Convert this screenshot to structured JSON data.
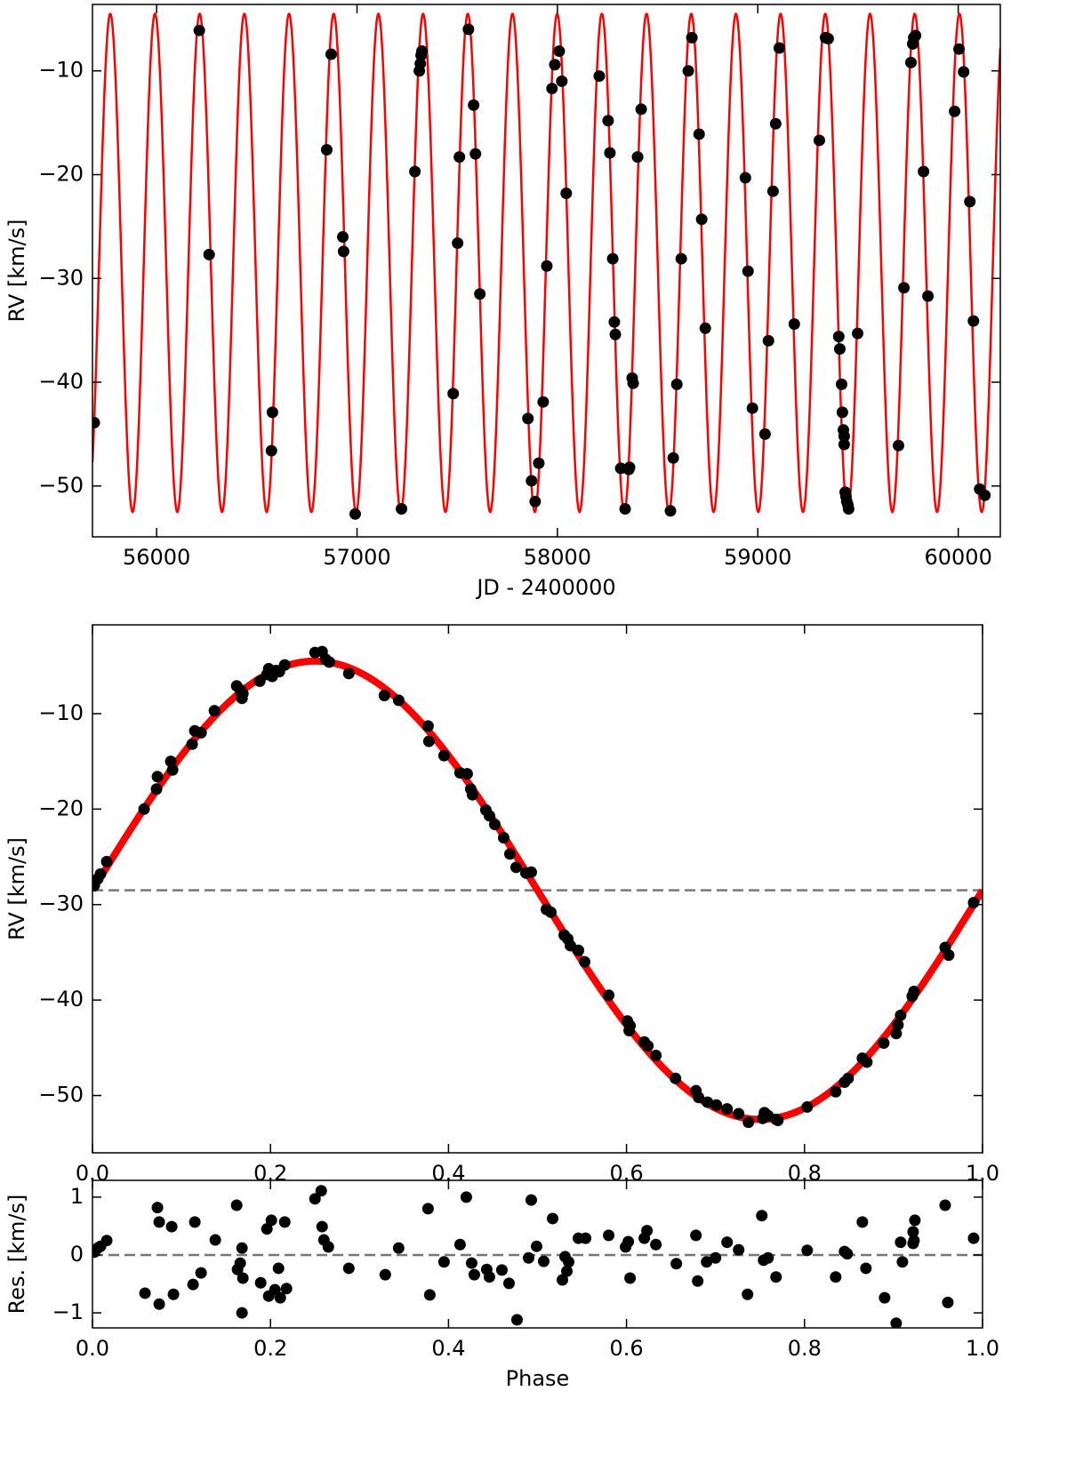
{
  "chart_data": [
    {
      "type": "scatter",
      "xlabel": "JD - 2400000",
      "ylabel": "RV [km/s]",
      "xlim": [
        55680,
        60210
      ],
      "ylim": [
        -54.9,
        -3.6
      ],
      "xticks": [
        56000,
        57000,
        58000,
        59000,
        60000
      ],
      "yticks": [
        {
          "value": -10,
          "label": "−10"
        },
        {
          "value": -20,
          "label": "−20"
        },
        {
          "value": -30,
          "label": "−30"
        },
        {
          "value": -40,
          "label": "−40"
        },
        {
          "value": -50,
          "label": "−50"
        }
      ],
      "color": "black",
      "model": {
        "period": 223,
        "t0": 55713,
        "gamma": -28.5,
        "amplitude": 24,
        "color": "red"
      },
      "x": [
        55689,
        56213,
        56262,
        56578,
        56573,
        56849,
        56871,
        56929,
        56933,
        56991,
        57222,
        57289,
        57311,
        57316,
        57320,
        57324,
        57480,
        57502,
        57511,
        57556,
        57582,
        57591,
        57613,
        57853,
        57871,
        57889,
        57907,
        57929,
        57947,
        57973,
        57987,
        58009,
        58022,
        58044,
        58209,
        58253,
        58262,
        58276,
        58284,
        58289,
        58316,
        58338,
        58356,
        58360,
        58373,
        58378,
        58400,
        58418,
        58564,
        58578,
        58596,
        58618,
        58653,
        58671,
        58707,
        58720,
        58738,
        58938,
        58951,
        58973,
        59036,
        59053,
        59076,
        59089,
        59107,
        59182,
        59307,
        59338,
        59351,
        59404,
        59409,
        59418,
        59422,
        59427,
        59431,
        59431,
        59436,
        59440,
        59444,
        59449,
        59453,
        59498,
        59702,
        59729,
        59764,
        59773,
        59778,
        59787,
        59827,
        59849,
        59982,
        60004,
        60027,
        60058,
        60076,
        60107,
        60133
      ],
      "values": [
        -43.9,
        -6.1,
        -27.7,
        -42.9,
        -46.6,
        -17.6,
        -8.4,
        -26.0,
        -27.4,
        -52.7,
        -52.2,
        -19.7,
        -10.0,
        -9.3,
        -8.5,
        -8.1,
        -41.1,
        -26.6,
        -18.3,
        -6.0,
        -13.3,
        -18.0,
        -31.5,
        -43.5,
        -49.5,
        -51.5,
        -47.8,
        -41.9,
        -28.8,
        -11.7,
        -9.4,
        -8.1,
        -11.0,
        -21.8,
        -10.5,
        -14.8,
        -17.9,
        -28.1,
        -34.2,
        -35.4,
        -48.3,
        -52.2,
        -48.4,
        -48.2,
        -39.6,
        -40.1,
        -18.3,
        -13.7,
        -52.4,
        -47.3,
        -40.2,
        -28.1,
        -10.0,
        -6.8,
        -16.1,
        -24.3,
        -34.8,
        -20.3,
        -29.3,
        -42.5,
        -45.0,
        -36.0,
        -21.6,
        -15.1,
        -7.8,
        -34.4,
        -16.7,
        -6.8,
        -6.9,
        -35.6,
        -36.8,
        -40.2,
        -42.9,
        -44.6,
        -45.2,
        -46.0,
        -50.6,
        -51.0,
        -51.5,
        -51.8,
        -52.2,
        -35.3,
        -46.1,
        -30.9,
        -9.2,
        -7.4,
        -6.8,
        -6.6,
        -19.7,
        -31.7,
        -13.9,
        -7.9,
        -10.1,
        -22.6,
        -34.1,
        -50.3,
        -50.9
      ]
    },
    {
      "type": "scatter",
      "ylabel": "RV [km/s]",
      "xlim": [
        0,
        1
      ],
      "ylim": [
        -56,
        -0.7
      ],
      "xticks": [
        {
          "value": 0,
          "label": "0.0"
        },
        0.2,
        0.4,
        0.6,
        0.8,
        {
          "value": 1,
          "label": "1.0"
        }
      ],
      "yticks": [
        {
          "value": -10,
          "label": "−10"
        },
        {
          "value": -20,
          "label": "−20"
        },
        {
          "value": -30,
          "label": "−30"
        },
        {
          "value": -40,
          "label": "−40"
        },
        {
          "value": -50,
          "label": "−50"
        }
      ],
      "color": "black",
      "model": {
        "gamma": -28.5,
        "amplitude": 24,
        "color": "red"
      },
      "hline": -28.5,
      "x": [
        0.002,
        0.006,
        0.009,
        0.016,
        0.058,
        0.072,
        0.073,
        0.088,
        0.09,
        0.112,
        0.115,
        0.122,
        0.137,
        0.162,
        0.166,
        0.167,
        0.168,
        0.169,
        0.188,
        0.196,
        0.198,
        0.202,
        0.206,
        0.21,
        0.216,
        0.25,
        0.258,
        0.262,
        0.266,
        0.288,
        0.328,
        0.344,
        0.377,
        0.378,
        0.395,
        0.413,
        0.421,
        0.425,
        0.427,
        0.442,
        0.446,
        0.452,
        0.462,
        0.469,
        0.476,
        0.487,
        0.493,
        0.51,
        0.515,
        0.53,
        0.534,
        0.537,
        0.546,
        0.553,
        0.58,
        0.601,
        0.604,
        0.603,
        0.62,
        0.624,
        0.633,
        0.655,
        0.678,
        0.681,
        0.691,
        0.701,
        0.713,
        0.726,
        0.737,
        0.753,
        0.755,
        0.759,
        0.768,
        0.77,
        0.803,
        0.835,
        0.845,
        0.849,
        0.865,
        0.87,
        0.889,
        0.903,
        0.905,
        0.908,
        0.921,
        0.923,
        0.958,
        0.962,
        0.99
      ],
      "values": [
        -28.0,
        -27.3,
        -26.8,
        -25.5,
        -20.0,
        -17.9,
        -16.6,
        -15.0,
        -15.9,
        -13.2,
        -11.8,
        -12.0,
        -9.7,
        -7.1,
        -7.5,
        -7.8,
        -8.4,
        -7.9,
        -6.6,
        -5.9,
        -5.3,
        -6.1,
        -5.5,
        -5.6,
        -4.9,
        -3.6,
        -3.5,
        -4.3,
        -4.6,
        -5.8,
        -8.1,
        -8.6,
        -11.3,
        -12.9,
        -14.4,
        -16.2,
        -16.3,
        -17.9,
        -18.5,
        -20.1,
        -20.7,
        -21.6,
        -23.0,
        -24.7,
        -26.1,
        -26.7,
        -26.6,
        -30.5,
        -30.8,
        -33.2,
        -33.6,
        -34.3,
        -34.8,
        -36.0,
        -39.5,
        -42.2,
        -42.7,
        -43.2,
        -44.4,
        -44.8,
        -45.8,
        -48.2,
        -49.5,
        -50.2,
        -50.7,
        -51.0,
        -51.4,
        -51.9,
        -52.8,
        -52.4,
        -51.8,
        -52.1,
        -52.5,
        -52.6,
        -51.2,
        -49.6,
        -48.6,
        -48.2,
        -46.1,
        -46.5,
        -44.5,
        -43.5,
        -42.6,
        -41.6,
        -39.6,
        -39.1,
        -34.5,
        -35.3,
        -29.8
      ]
    },
    {
      "type": "scatter",
      "xlabel": "Phase",
      "ylabel": "Res. [km/s]",
      "xlim": [
        0,
        1
      ],
      "ylim": [
        -1.26,
        1.29
      ],
      "xticks": [
        {
          "value": 0,
          "label": "0.0"
        },
        0.2,
        0.4,
        0.6,
        0.8,
        {
          "value": 1,
          "label": "1.0"
        }
      ],
      "yticks": [
        {
          "value": -1,
          "label": "−1"
        },
        0,
        1
      ],
      "color": "black",
      "hline": 0,
      "x": [
        0.002,
        0.006,
        0.009,
        0.016,
        0.059,
        0.073,
        0.075,
        0.075,
        0.089,
        0.091,
        0.113,
        0.115,
        0.122,
        0.138,
        0.162,
        0.163,
        0.166,
        0.168,
        0.168,
        0.169,
        0.189,
        0.196,
        0.198,
        0.201,
        0.205,
        0.209,
        0.211,
        0.216,
        0.218,
        0.25,
        0.257,
        0.258,
        0.26,
        0.265,
        0.288,
        0.329,
        0.344,
        0.377,
        0.379,
        0.395,
        0.413,
        0.42,
        0.426,
        0.429,
        0.443,
        0.446,
        0.46,
        0.468,
        0.477,
        0.49,
        0.493,
        0.499,
        0.507,
        0.517,
        0.528,
        0.531,
        0.533,
        0.535,
        0.546,
        0.554,
        0.58,
        0.599,
        0.602,
        0.604,
        0.62,
        0.623,
        0.633,
        0.656,
        0.678,
        0.68,
        0.69,
        0.7,
        0.713,
        0.726,
        0.736,
        0.752,
        0.754,
        0.759,
        0.768,
        0.803,
        0.835,
        0.845,
        0.848,
        0.865,
        0.869,
        0.89,
        0.903,
        0.908,
        0.91,
        0.922,
        0.922,
        0.923,
        0.924,
        0.958,
        0.961,
        0.99
      ],
      "values": [
        0.05,
        0.12,
        0.15,
        0.25,
        -0.66,
        0.82,
        0.57,
        -0.85,
        0.49,
        -0.68,
        -0.51,
        0.57,
        -0.31,
        0.26,
        0.86,
        -0.25,
        -0.14,
        0.12,
        -1.0,
        -0.4,
        -0.48,
        0.45,
        -0.71,
        0.6,
        -0.6,
        -0.23,
        -0.74,
        0.57,
        -0.58,
        0.97,
        1.11,
        0.49,
        0.26,
        0.14,
        -0.23,
        -0.34,
        0.12,
        0.8,
        -0.69,
        -0.12,
        0.18,
        1.0,
        -0.14,
        -0.34,
        -0.25,
        -0.38,
        -0.26,
        -0.49,
        -1.12,
        -0.05,
        0.95,
        0.15,
        -0.11,
        0.63,
        -0.43,
        -0.03,
        -0.28,
        -0.12,
        0.29,
        0.29,
        0.34,
        0.14,
        0.23,
        -0.4,
        0.29,
        0.42,
        0.18,
        -0.15,
        0.34,
        -0.45,
        -0.12,
        -0.05,
        0.22,
        0.09,
        -0.68,
        0.68,
        -0.09,
        -0.05,
        -0.38,
        0.08,
        -0.38,
        0.06,
        0.02,
        0.57,
        -0.23,
        -0.74,
        -1.18,
        0.22,
        -0.12,
        0.4,
        0.2,
        0.25,
        0.6,
        0.86,
        -0.82,
        0.29
      ]
    }
  ]
}
